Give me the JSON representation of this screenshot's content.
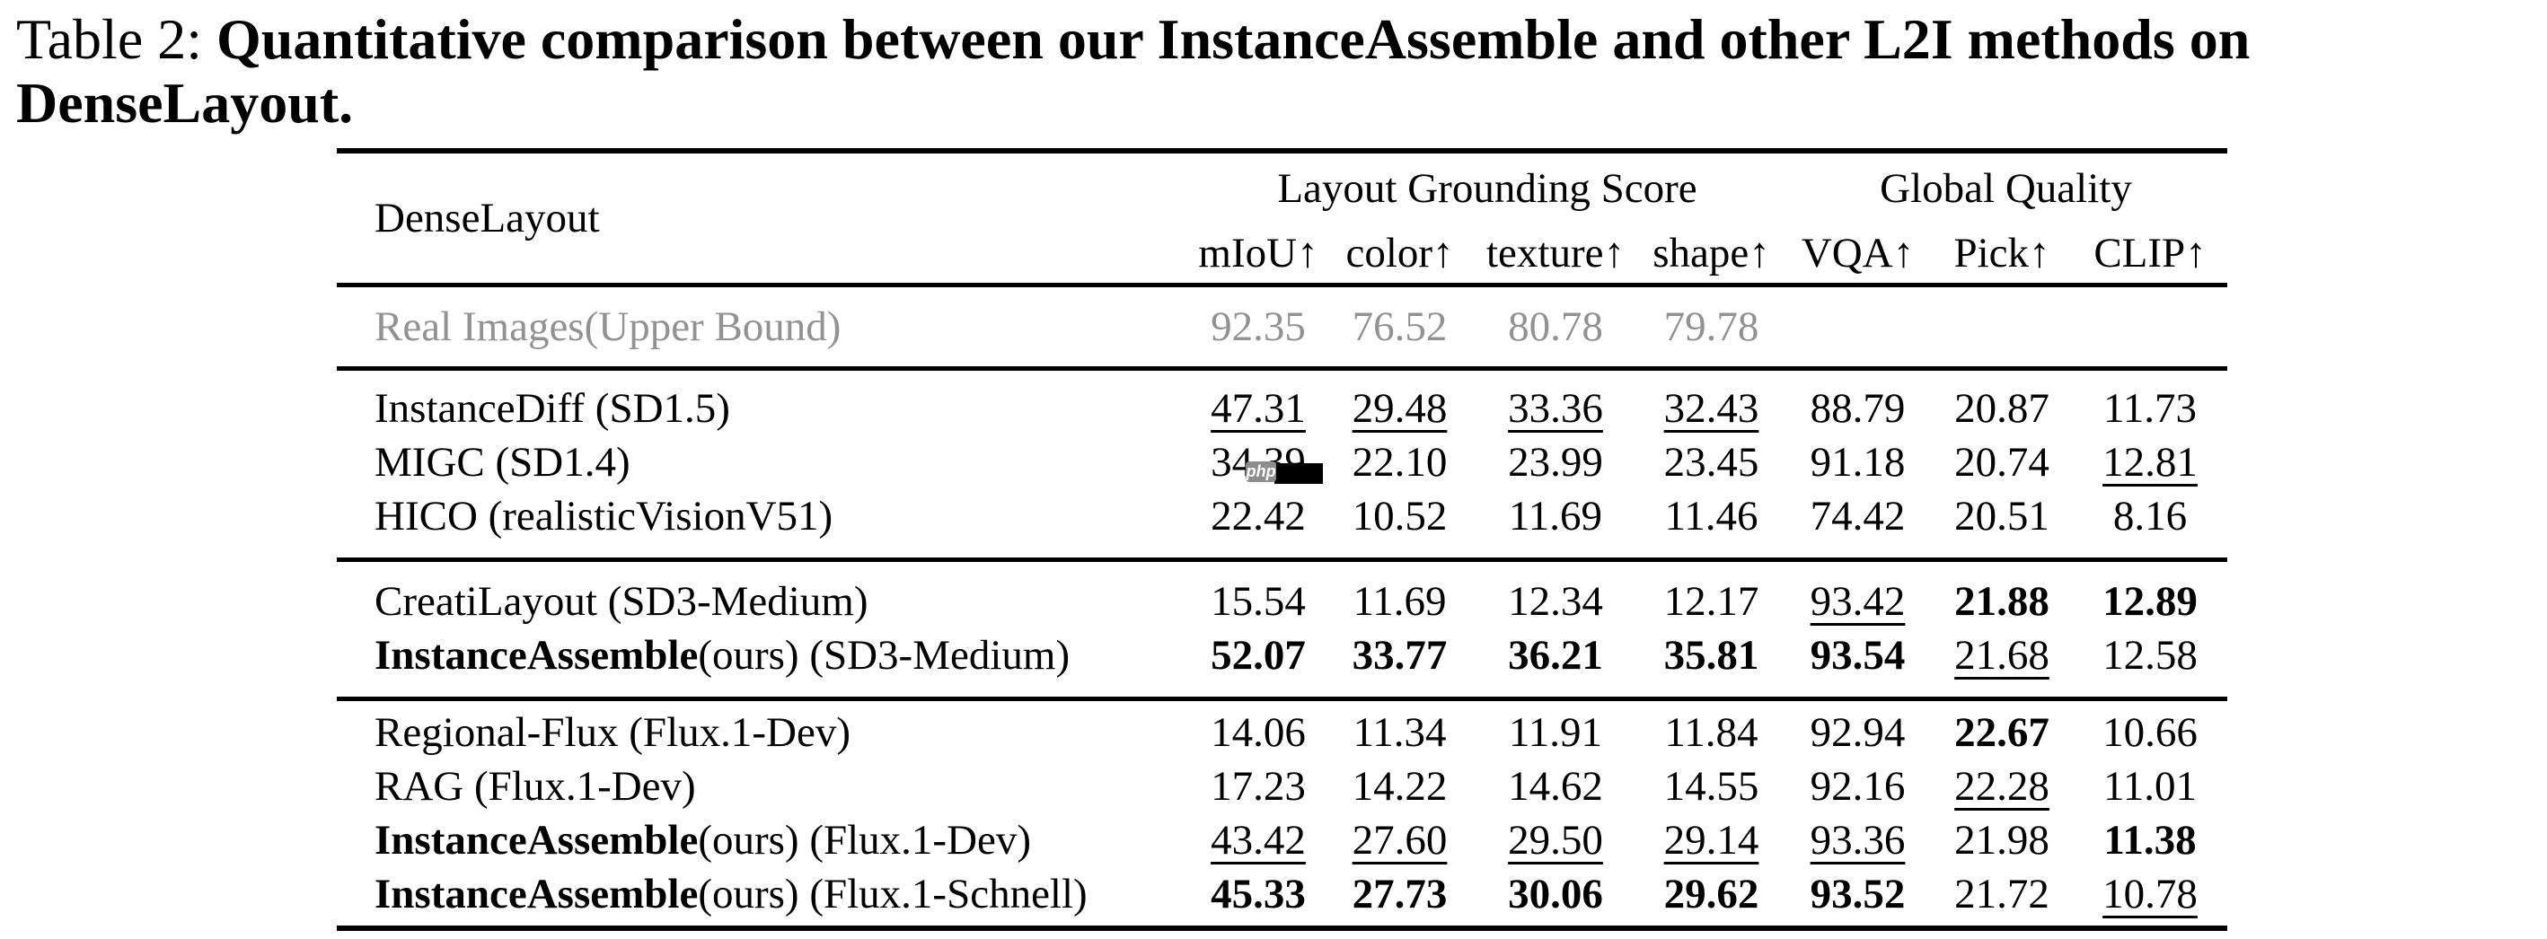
{
  "caption": {
    "label": "Table 2:",
    "bold_line1": "Quantitative comparison between our InstanceAssemble and other L2I methods on",
    "bold_line2": "DenseLayout."
  },
  "table": {
    "corner_label": "DenseLayout",
    "groups": [
      {
        "label": "Layout Grounding Score",
        "columns": [
          "mIoU↑",
          "color↑",
          "texture↑",
          "shape↑"
        ]
      },
      {
        "label": "Global Quality",
        "columns": [
          "VQA↑",
          "Pick↑",
          "CLIP↑"
        ]
      }
    ],
    "sections": [
      {
        "name": "upper",
        "rows": [
          {
            "method": {
              "bold": "",
              "rest": "Real Images(Upper Bound)"
            },
            "gray": true,
            "cells": [
              {
                "v": "92.35"
              },
              {
                "v": "76.52"
              },
              {
                "v": "80.78"
              },
              {
                "v": "79.78"
              },
              {
                "v": ""
              },
              {
                "v": ""
              },
              {
                "v": ""
              }
            ]
          }
        ]
      },
      {
        "name": "sd1",
        "rows": [
          {
            "method": {
              "bold": "",
              "rest": "InstanceDiff (SD1.5)"
            },
            "cells": [
              {
                "v": "47.31",
                "s": "u"
              },
              {
                "v": "29.48",
                "s": "u"
              },
              {
                "v": "33.36",
                "s": "u"
              },
              {
                "v": "32.43",
                "s": "u"
              },
              {
                "v": "88.79"
              },
              {
                "v": "20.87"
              },
              {
                "v": "11.73"
              }
            ]
          },
          {
            "method": {
              "bold": "",
              "rest": "MIGC (SD1.4)"
            },
            "cells": [
              {
                "v": "34.39",
                "artifact": true
              },
              {
                "v": "22.10"
              },
              {
                "v": "23.99"
              },
              {
                "v": "23.45"
              },
              {
                "v": "91.18"
              },
              {
                "v": "20.74"
              },
              {
                "v": "12.81",
                "s": "u"
              }
            ]
          },
          {
            "method": {
              "bold": "",
              "rest": "HICO (realisticVisionV51)"
            },
            "cells": [
              {
                "v": "22.42"
              },
              {
                "v": "10.52"
              },
              {
                "v": "11.69"
              },
              {
                "v": "11.46"
              },
              {
                "v": "74.42"
              },
              {
                "v": "20.51"
              },
              {
                "v": "8.16"
              }
            ]
          }
        ]
      },
      {
        "name": "sd3",
        "rows": [
          {
            "method": {
              "bold": "",
              "rest": "CreatiLayout (SD3-Medium)"
            },
            "cells": [
              {
                "v": "15.54"
              },
              {
                "v": "11.69"
              },
              {
                "v": "12.34"
              },
              {
                "v": "12.17"
              },
              {
                "v": "93.42",
                "s": "u"
              },
              {
                "v": "21.88",
                "s": "b"
              },
              {
                "v": "12.89",
                "s": "b"
              }
            ]
          },
          {
            "method": {
              "bold": "InstanceAssemble",
              "rest": "(ours) (SD3-Medium)"
            },
            "cells": [
              {
                "v": "52.07",
                "s": "b"
              },
              {
                "v": "33.77",
                "s": "b"
              },
              {
                "v": "36.21",
                "s": "b"
              },
              {
                "v": "35.81",
                "s": "b"
              },
              {
                "v": "93.54",
                "s": "b"
              },
              {
                "v": "21.68",
                "s": "u"
              },
              {
                "v": "12.58"
              }
            ]
          }
        ]
      },
      {
        "name": "flux",
        "rows": [
          {
            "method": {
              "bold": "",
              "rest": "Regional-Flux (Flux.1-Dev)"
            },
            "cells": [
              {
                "v": "14.06"
              },
              {
                "v": "11.34"
              },
              {
                "v": "11.91"
              },
              {
                "v": "11.84"
              },
              {
                "v": "92.94"
              },
              {
                "v": "22.67",
                "s": "b"
              },
              {
                "v": "10.66"
              }
            ]
          },
          {
            "method": {
              "bold": "",
              "rest": "RAG (Flux.1-Dev)"
            },
            "cells": [
              {
                "v": "17.23"
              },
              {
                "v": "14.22"
              },
              {
                "v": "14.62"
              },
              {
                "v": "14.55"
              },
              {
                "v": "92.16"
              },
              {
                "v": "22.28",
                "s": "u"
              },
              {
                "v": "11.01"
              }
            ]
          },
          {
            "method": {
              "bold": "InstanceAssemble",
              "rest": "(ours) (Flux.1-Dev)"
            },
            "cells": [
              {
                "v": "43.42",
                "s": "u"
              },
              {
                "v": "27.60",
                "s": "u"
              },
              {
                "v": "29.50",
                "s": "u"
              },
              {
                "v": "29.14",
                "s": "u"
              },
              {
                "v": "93.36",
                "s": "u"
              },
              {
                "v": "21.98"
              },
              {
                "v": "11.38",
                "s": "b"
              }
            ]
          },
          {
            "method": {
              "bold": "InstanceAssemble",
              "rest": "(ours) (Flux.1-Schnell)"
            },
            "cells": [
              {
                "v": "45.33",
                "s": "b"
              },
              {
                "v": "27.73",
                "s": "b"
              },
              {
                "v": "30.06",
                "s": "b"
              },
              {
                "v": "29.62",
                "s": "b"
              },
              {
                "v": "93.52",
                "s": "b"
              },
              {
                "v": "21.72"
              },
              {
                "v": "10.78",
                "s": "u"
              }
            ]
          }
        ]
      }
    ]
  },
  "artifact": {
    "badge_text": "php"
  },
  "colors": {
    "text": "#000000",
    "muted_row": "#929292",
    "badge_gray": "#8d8d8d",
    "background": "#ffffff"
  }
}
